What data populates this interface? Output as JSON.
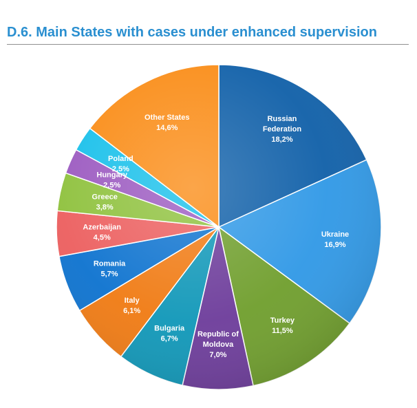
{
  "chart_data": {
    "type": "pie",
    "title": "D.6. Main States with cases under enhanced supervision",
    "start_at": "top, clockwise",
    "slices": [
      {
        "label": "Russian Federation",
        "lines": [
          "Russian",
          "Federation"
        ],
        "value": 18.2,
        "value_label": "18,2%",
        "color": "#0f5fa8"
      },
      {
        "label": "Ukraine",
        "lines": [
          "Ukraine"
        ],
        "value": 16.9,
        "value_label": "16,9%",
        "color": "#2f98e6"
      },
      {
        "label": "Turkey",
        "lines": [
          "Turkey"
        ],
        "value": 11.5,
        "value_label": "11,5%",
        "color": "#6f9e2c"
      },
      {
        "label": "Republic of Moldova",
        "lines": [
          "Republic of",
          "Moldova"
        ],
        "value": 7.0,
        "value_label": "7,0%",
        "color": "#6c3b9a"
      },
      {
        "label": "Bulgaria",
        "lines": [
          "Bulgaria"
        ],
        "value": 6.7,
        "value_label": "6,7%",
        "color": "#0f97b8"
      },
      {
        "label": "Italy",
        "lines": [
          "Italy"
        ],
        "value": 6.1,
        "value_label": "6,1%",
        "color": "#f07a12"
      },
      {
        "label": "Romania",
        "lines": [
          "Romania"
        ],
        "value": 5.7,
        "value_label": "5,7%",
        "color": "#0c72cf"
      },
      {
        "label": "Azerbaijan",
        "lines": [
          "Azerbaijan"
        ],
        "value": 4.5,
        "value_label": "4,5%",
        "color": "#ec5e5e"
      },
      {
        "label": "Greece",
        "lines": [
          "Greece"
        ],
        "value": 3.8,
        "value_label": "3,8%",
        "color": "#8ec13c"
      },
      {
        "label": "Hungary",
        "lines": [
          "Hungary"
        ],
        "value": 2.5,
        "value_label": "2,5%",
        "color": "#9b59c0"
      },
      {
        "label": "Poland",
        "lines": [
          "Poland"
        ],
        "value": 2.5,
        "value_label": "2,5%",
        "color": "#18c0ea"
      },
      {
        "label": "Other States",
        "lines": [
          "Other States"
        ],
        "value": 14.6,
        "value_label": "14,6%",
        "color": "#fa8c16"
      }
    ]
  }
}
